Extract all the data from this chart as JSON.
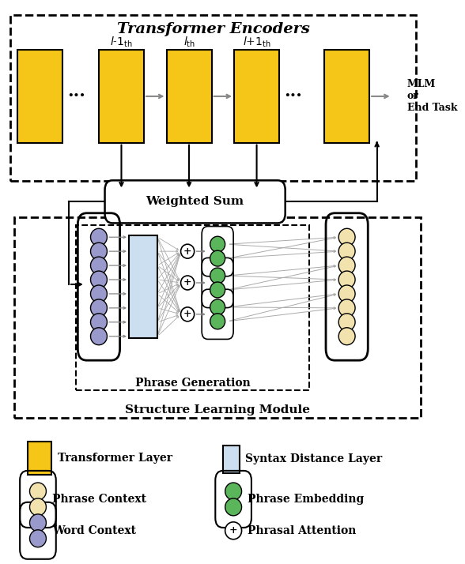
{
  "fig_width": 5.88,
  "fig_height": 7.14,
  "dpi": 100,
  "title": "Transformer Encoders",
  "transformer_color": "#F5C518",
  "syntax_distance_color": "#CCDFF0",
  "phrase_context_color": "#F2E2AD",
  "word_context_color": "#9999CC",
  "phrase_embedding_color": "#5BB55B",
  "weighted_sum_label": "Weighted Sum",
  "phrase_gen_label": "Phrase Generation",
  "slm_label": "Structure Learning Module",
  "mlm_label": "MLM\nor\nEnd Task"
}
